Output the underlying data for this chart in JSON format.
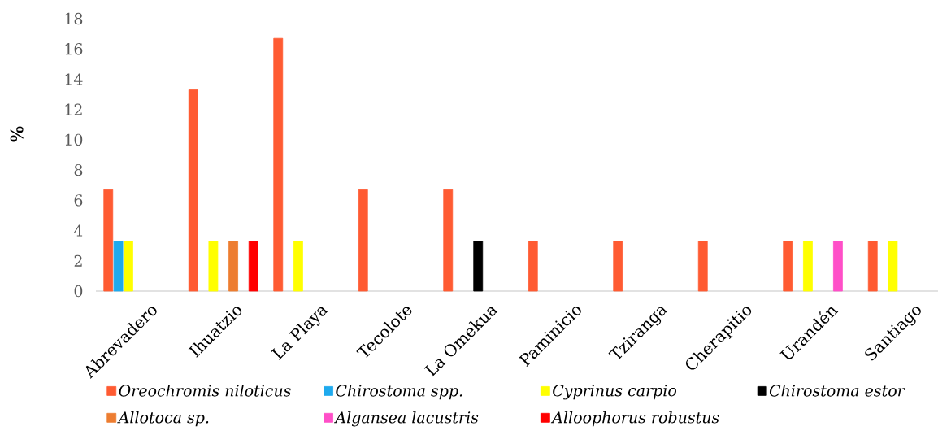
{
  "chart_data": {
    "type": "bar",
    "ylabel": "%",
    "categories": [
      "Abrevadero",
      "Ihuatzio",
      "La Playa",
      "Tecolote",
      "La Omekua",
      "Paminicio",
      "Tziranga",
      "Cherapitio",
      "Urandén",
      "Santiago"
    ],
    "series": [
      {
        "name": "Oreochromis niloticus",
        "color": "#ff5b32",
        "values": [
          6.7,
          13.3,
          16.7,
          6.7,
          6.7,
          3.3,
          3.3,
          3.3,
          3.3,
          3.3
        ]
      },
      {
        "name": "Chirostoma spp.",
        "color": "#1eaaee",
        "values": [
          3.3,
          null,
          null,
          null,
          null,
          null,
          null,
          null,
          null,
          null
        ]
      },
      {
        "name": "Cyprinus carpio",
        "color": "#ffff00",
        "values": [
          3.3,
          3.3,
          3.3,
          null,
          null,
          null,
          null,
          null,
          3.3,
          3.3
        ]
      },
      {
        "name": "Chirostoma estor",
        "color": "#000000",
        "values": [
          null,
          null,
          null,
          null,
          3.3,
          null,
          null,
          null,
          null,
          null
        ]
      },
      {
        "name": "Allotoca sp.",
        "color": "#ed7d31",
        "values": [
          null,
          3.3,
          null,
          null,
          null,
          null,
          null,
          null,
          null,
          null
        ]
      },
      {
        "name": "Algansea lacustris",
        "color": "#ff4fc8",
        "values": [
          null,
          null,
          null,
          null,
          null,
          null,
          null,
          null,
          3.3,
          null
        ]
      },
      {
        "name": "Alloophorus robustus",
        "color": "#ff0000",
        "values": [
          null,
          3.3,
          null,
          null,
          null,
          null,
          null,
          null,
          null,
          null
        ]
      }
    ],
    "ylim": [
      0,
      18
    ],
    "yticks": [
      0,
      2,
      4,
      6,
      8,
      10,
      12,
      14,
      16,
      18
    ],
    "legend": "bottom"
  }
}
